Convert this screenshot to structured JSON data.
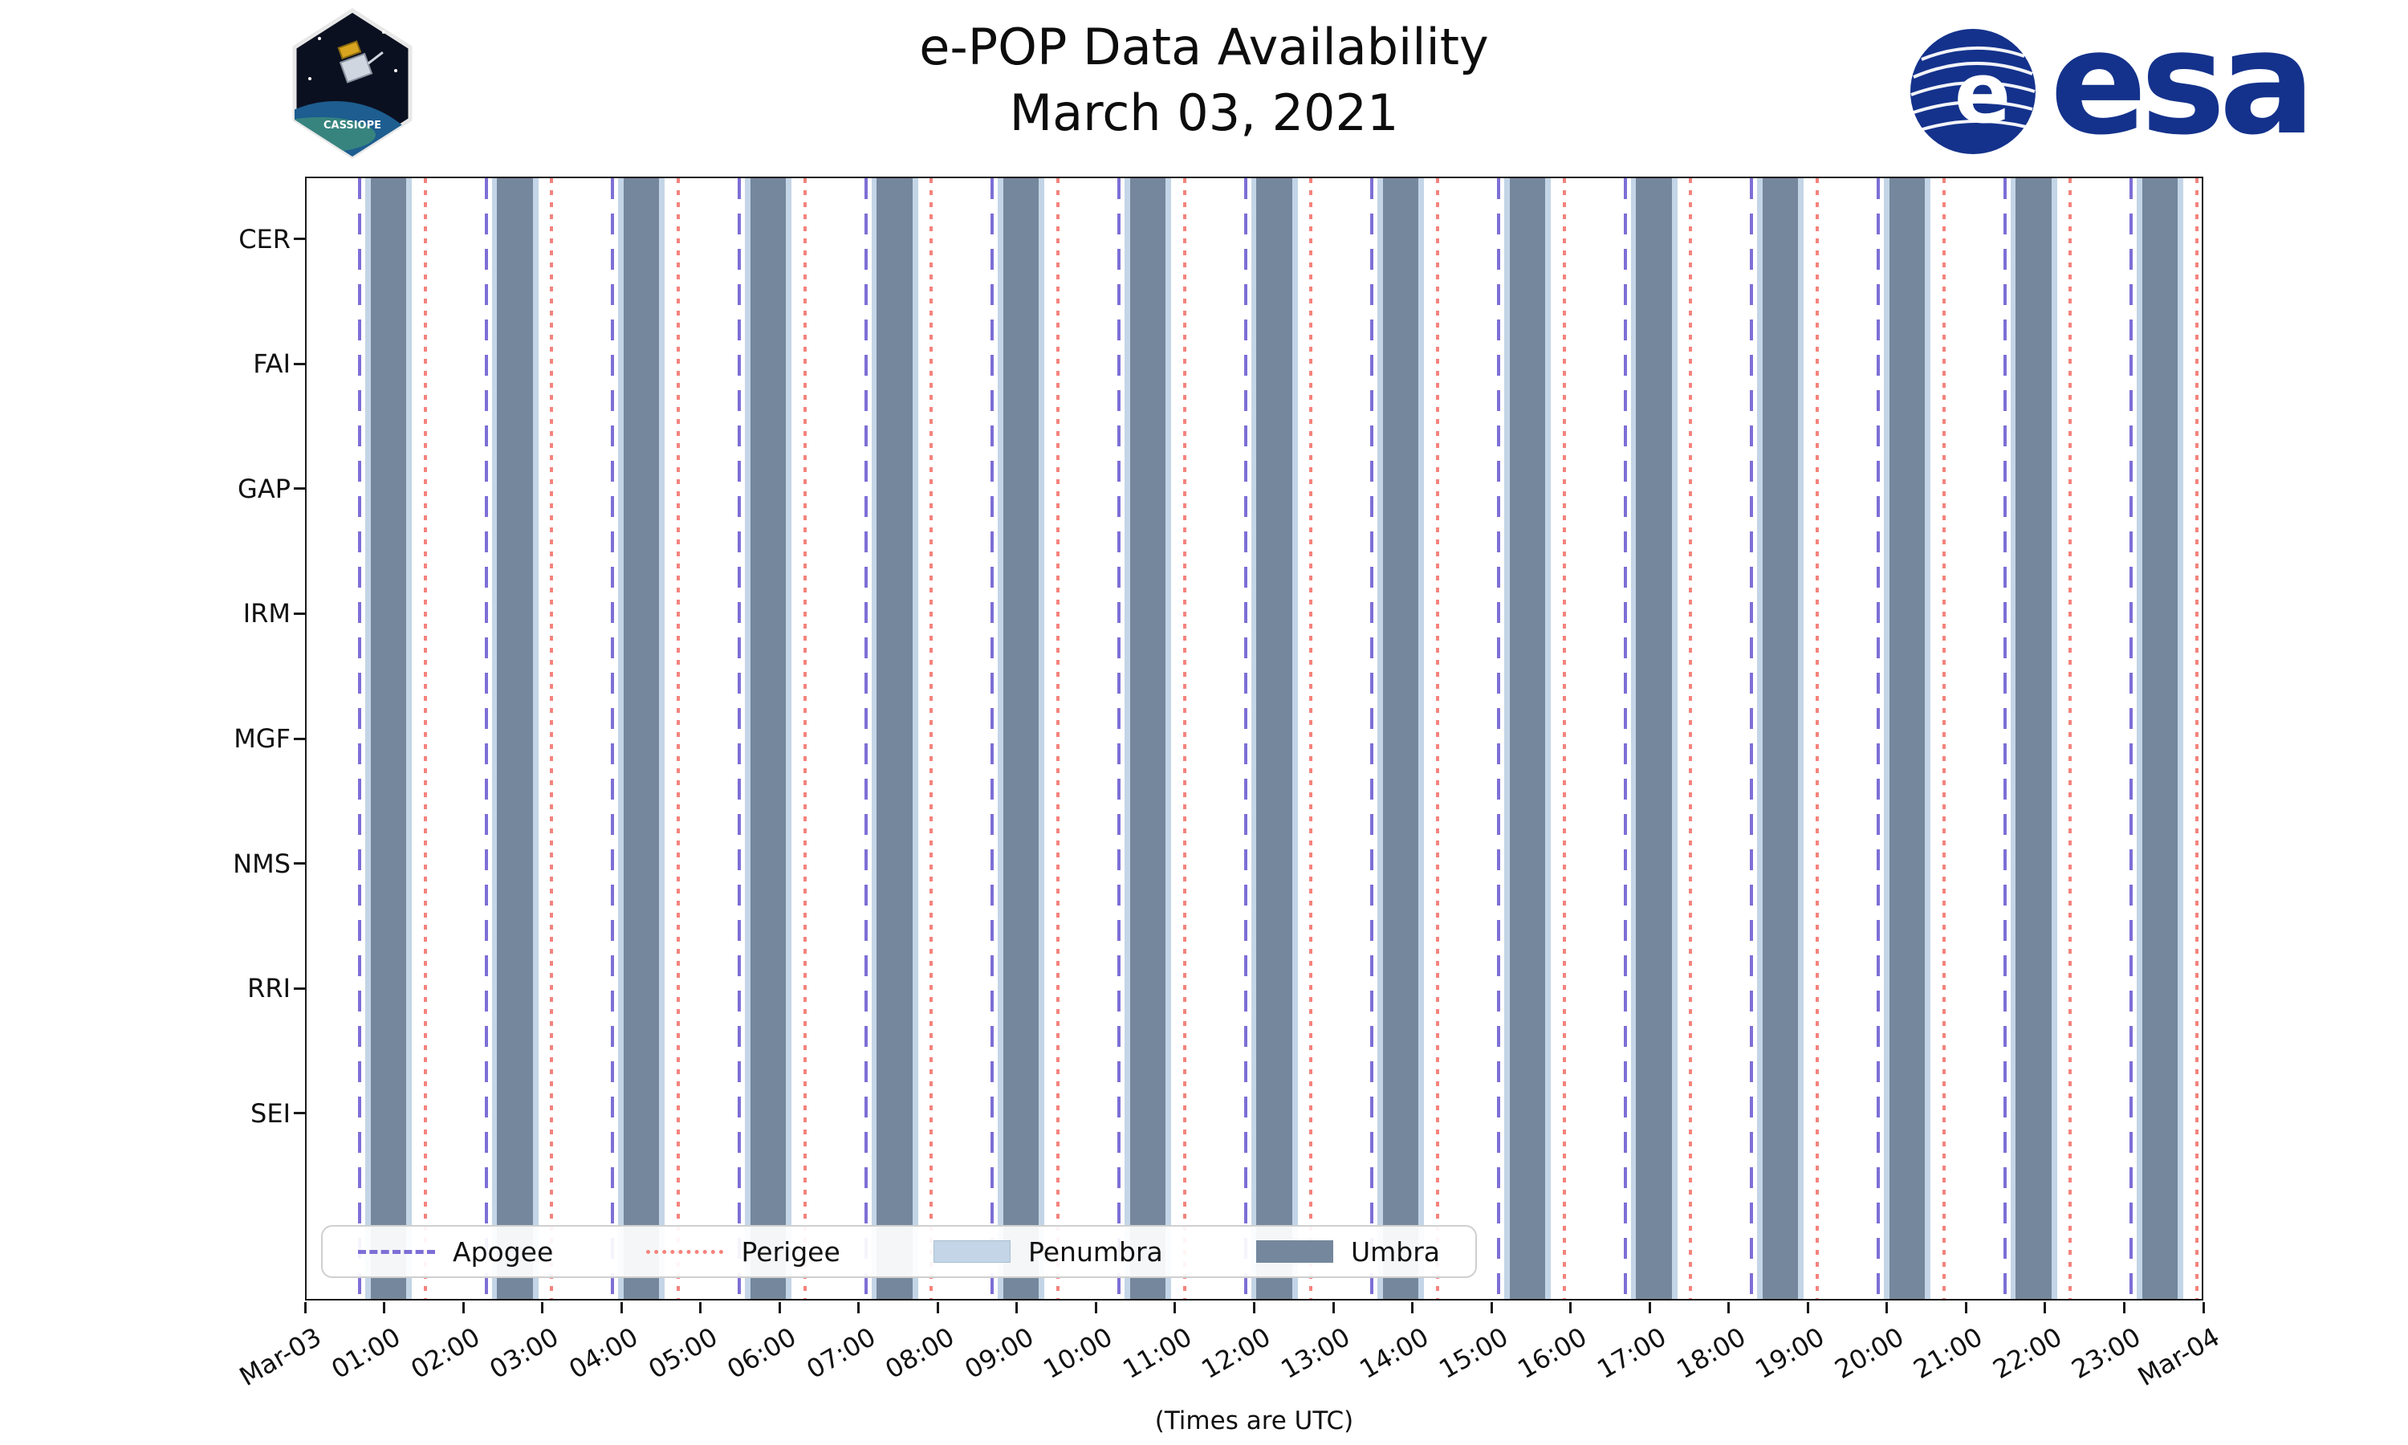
{
  "header": {
    "title_line1": "e-POP Data Availability",
    "title_line2": "March 03, 2021",
    "cassiope_patch_label": "CASSIOPE",
    "esa_globe_letter": "e",
    "esa_wordmark": "esa"
  },
  "footer": {
    "caption": "(Times are UTC)"
  },
  "colors": {
    "apogee": "#7d6fd6",
    "perigee": "#f4837d",
    "penumbra": "#c3d5e6",
    "umbra": "#74879c",
    "esa_blue": "#14328c",
    "axis": "#1a1a1a"
  },
  "y_axis": {
    "labels": [
      "CER",
      "FAI",
      "GAP",
      "IRM",
      "MGF",
      "NMS",
      "RRI",
      "SEI"
    ]
  },
  "x_axis": {
    "ticks": [
      "Mar-03",
      "01:00",
      "02:00",
      "03:00",
      "04:00",
      "05:00",
      "06:00",
      "07:00",
      "08:00",
      "09:00",
      "10:00",
      "11:00",
      "12:00",
      "13:00",
      "14:00",
      "15:00",
      "16:00",
      "17:00",
      "18:00",
      "19:00",
      "20:00",
      "21:00",
      "22:00",
      "23:00",
      "Mar-04"
    ]
  },
  "legend": {
    "items": [
      {
        "label": "Apogee",
        "style": "dashed-line"
      },
      {
        "label": "Perigee",
        "style": "dotted-line"
      },
      {
        "label": "Penumbra",
        "style": "patch"
      },
      {
        "label": "Umbra",
        "style": "patch"
      }
    ],
    "position": "lower left"
  },
  "chart_data": {
    "type": "timeline",
    "title": "e-POP Data Availability",
    "subtitle": "March 03, 2021",
    "date_utc": "2021-03-03",
    "x_range_hours_utc": [
      0,
      24
    ],
    "grid": false,
    "instruments": [
      "CER",
      "FAI",
      "GAP",
      "IRM",
      "MGF",
      "NMS",
      "RRI",
      "SEI"
    ],
    "apogee_hours": [
      0.67,
      2.27,
      3.87,
      5.47,
      7.07,
      8.67,
      10.27,
      11.87,
      13.47,
      15.07,
      16.67,
      18.27,
      19.87,
      21.47,
      23.07
    ],
    "perigee_hours": [
      1.5,
      3.1,
      4.7,
      6.3,
      7.9,
      9.5,
      11.1,
      12.7,
      14.3,
      15.9,
      17.5,
      19.1,
      20.7,
      22.3,
      23.9
    ],
    "umbra_intervals_hours": [
      [
        0.81,
        1.26
      ],
      [
        2.41,
        2.86
      ],
      [
        4.01,
        4.46
      ],
      [
        5.61,
        6.06
      ],
      [
        7.21,
        7.66
      ],
      [
        8.81,
        9.26
      ],
      [
        10.41,
        10.86
      ],
      [
        12.01,
        12.46
      ],
      [
        13.61,
        14.06
      ],
      [
        15.21,
        15.66
      ],
      [
        16.81,
        17.26
      ],
      [
        18.41,
        18.86
      ],
      [
        20.01,
        20.46
      ],
      [
        21.61,
        22.06
      ],
      [
        23.21,
        23.66
      ]
    ],
    "penumbra_pad_hours": 0.07,
    "note": "(Times are UTC)"
  }
}
